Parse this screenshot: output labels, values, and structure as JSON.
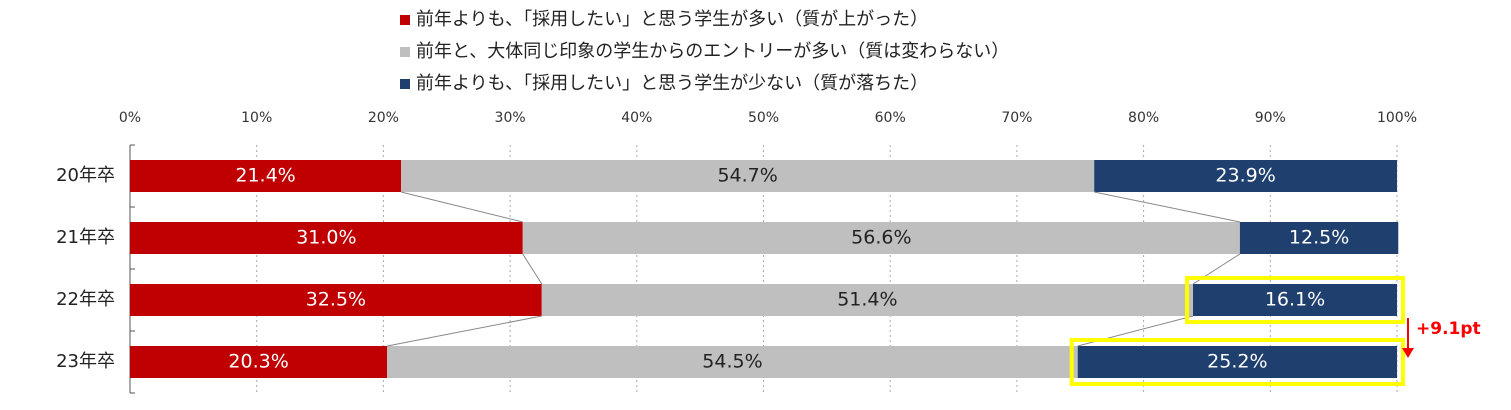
{
  "chart_data": {
    "type": "stacked-bar-100",
    "categories": [
      "20年卒",
      "21年卒",
      "22年卒",
      "23年卒"
    ],
    "series": [
      {
        "name": "前年よりも、「採用したい」と思う学生が多い（質が上がった）",
        "color": "#c00000",
        "values": [
          21.4,
          31.0,
          32.5,
          20.3
        ],
        "value_labels": [
          "21.4%",
          "31.0%",
          "32.5%",
          "20.3%"
        ]
      },
      {
        "name": "前年と、大体同じ印象の学生からのエントリーが多い（質は変わらない）",
        "color": "#bfbfbf",
        "values": [
          54.7,
          56.6,
          51.4,
          54.5
        ],
        "value_labels": [
          "54.7%",
          "56.6%",
          "51.4%",
          "54.5%"
        ]
      },
      {
        "name": "前年よりも、「採用したい」と思う学生が少ない（質が落ちた）",
        "color": "#1f3f6e",
        "values": [
          23.9,
          12.5,
          16.1,
          25.2
        ],
        "value_labels": [
          "23.9%",
          "12.5%",
          "16.1%",
          "25.2%"
        ]
      }
    ],
    "xlim": [
      0,
      100
    ],
    "xticks": [
      {
        "value": 0,
        "label": "0%"
      },
      {
        "value": 10,
        "label": "10%"
      },
      {
        "value": 20,
        "label": "20%"
      },
      {
        "value": 30,
        "label": "30%"
      },
      {
        "value": 40,
        "label": "40%"
      },
      {
        "value": 50,
        "label": "50%"
      },
      {
        "value": 60,
        "label": "60%"
      },
      {
        "value": 70,
        "label": "70%"
      },
      {
        "value": 80,
        "label": "80%"
      },
      {
        "value": 90,
        "label": "90%"
      },
      {
        "value": 100,
        "label": "100%"
      }
    ],
    "grid": true,
    "highlight_color": "#ffff00",
    "highlight_categories": [
      "22年卒",
      "23年卒"
    ],
    "annotation": {
      "text": "+9.1pt",
      "color": "#ff0000"
    }
  }
}
